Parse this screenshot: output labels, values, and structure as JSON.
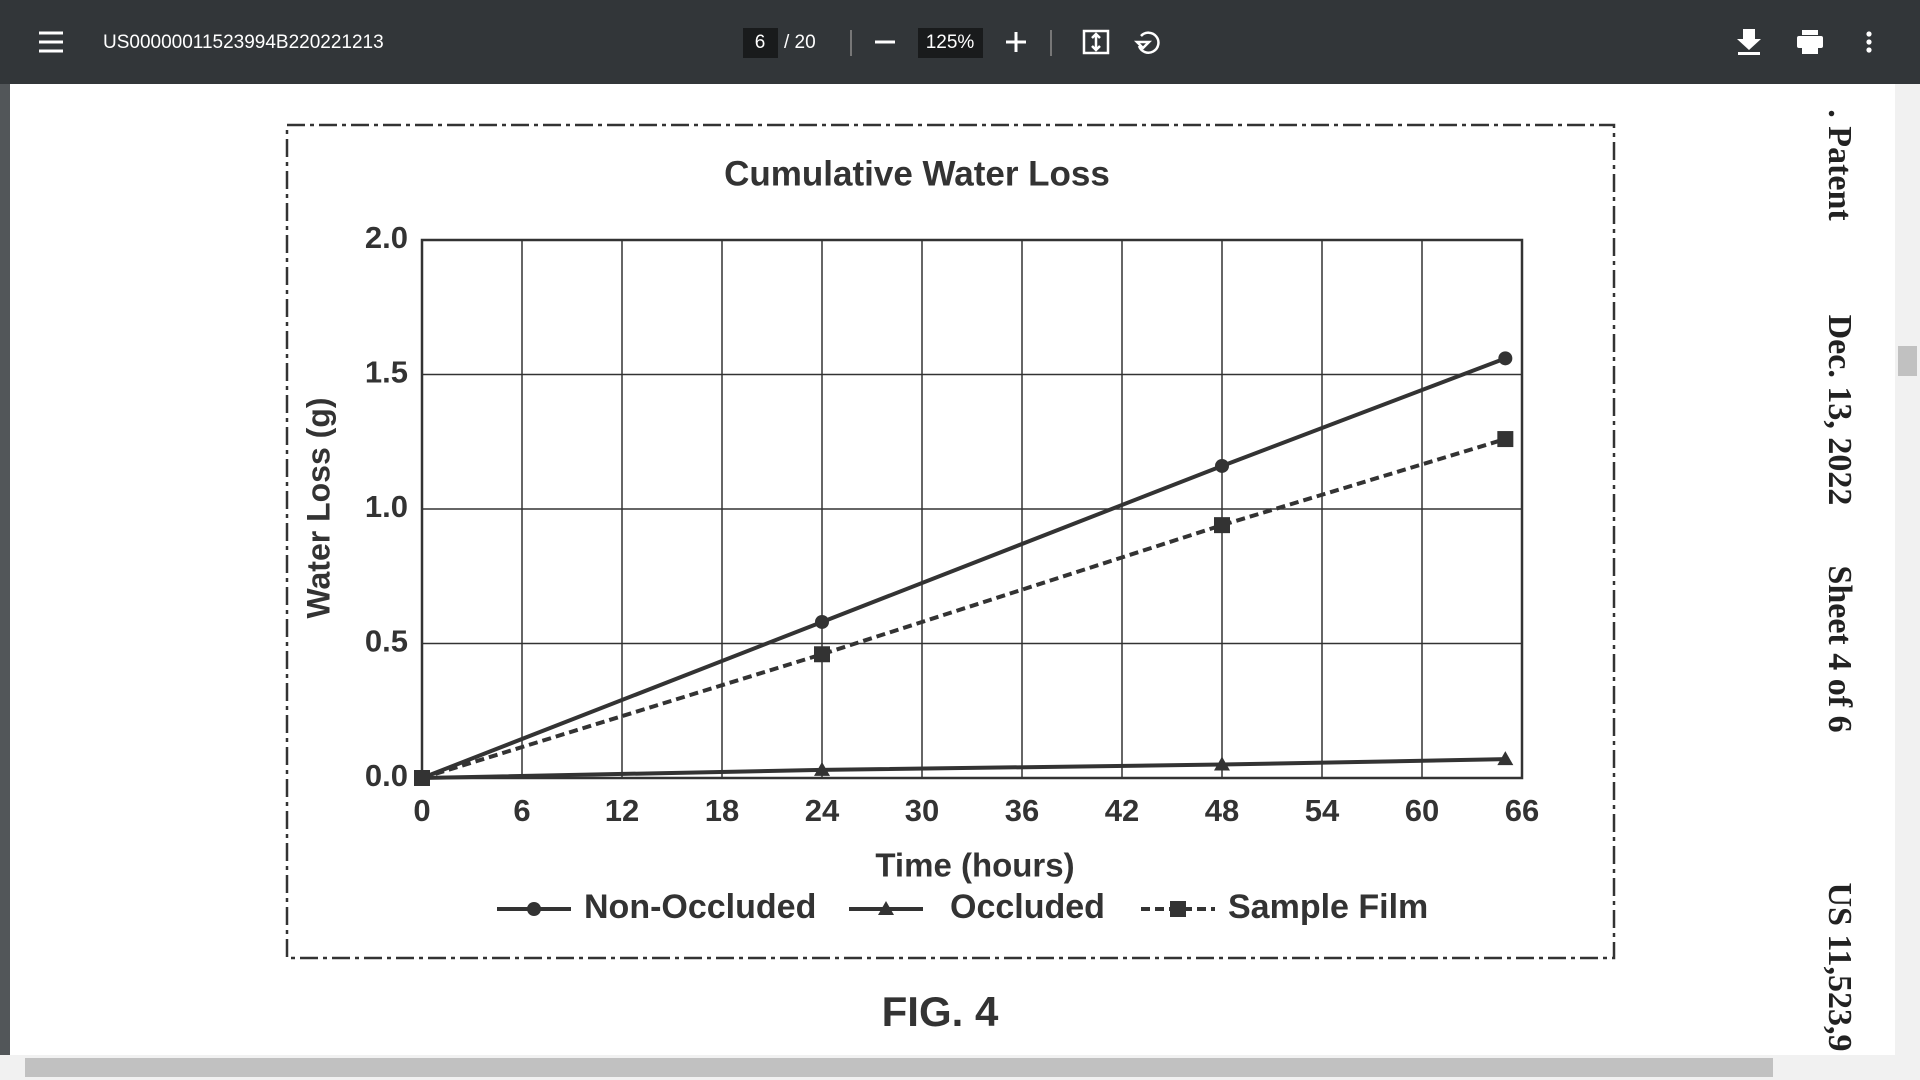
{
  "toolbar": {
    "file_name": "US00000011523994B220221213",
    "page_number": "6",
    "page_count": "/ 20",
    "zoom": "125%"
  },
  "side_header": {
    "patent": ". Patent",
    "date": "Dec. 13, 2022",
    "sheet": "Sheet 4 of 6",
    "number": "US 11,523,9"
  },
  "figure_label": "FIG. 4",
  "chart_data": {
    "type": "line",
    "title": "Cumulative Water Loss",
    "x_label": "Time (hours)",
    "y_label": "Water Loss (g)",
    "x": [
      0,
      24,
      48,
      65
    ],
    "series": [
      {
        "name": "Non-Occluded",
        "color": "#333333",
        "marker": "circle",
        "dash": false,
        "values": [
          0,
          0.58,
          1.16,
          1.56
        ]
      },
      {
        "name": "Occluded",
        "color": "#333333",
        "marker": "triangle",
        "dash": false,
        "values": [
          0,
          0.03,
          0.05,
          0.07
        ]
      },
      {
        "name": "Sample Film",
        "color": "#333333",
        "marker": "square",
        "dash": true,
        "values": [
          0,
          0.46,
          0.94,
          1.26
        ]
      }
    ],
    "xlim": [
      0,
      66
    ],
    "xticks": [
      0,
      6,
      12,
      18,
      24,
      30,
      36,
      42,
      48,
      54,
      60,
      66
    ],
    "ylim": [
      0,
      2
    ],
    "yticks": [
      {
        "value": 0,
        "label": "0.0"
      },
      0.5,
      {
        "value": 1,
        "label": "1.0"
      },
      1.5,
      {
        "value": 2,
        "label": "2.0"
      }
    ],
    "grid": true
  }
}
